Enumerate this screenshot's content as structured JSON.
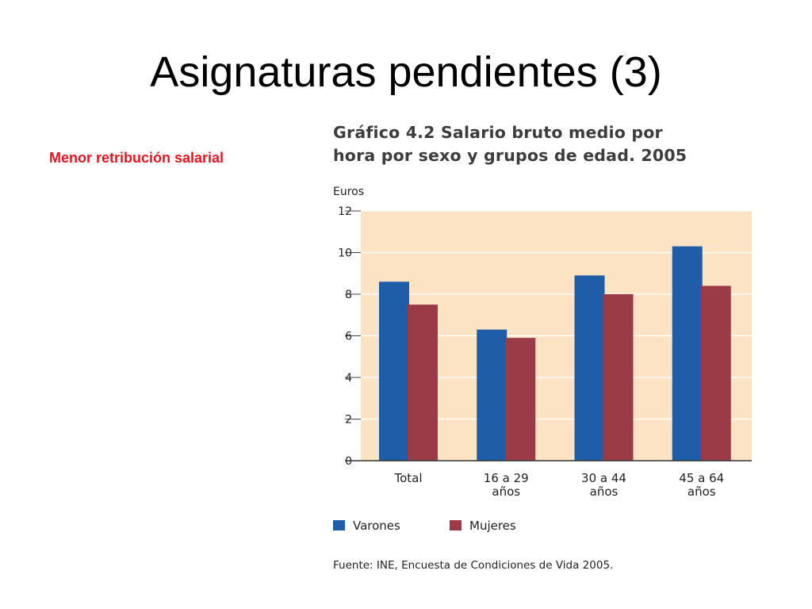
{
  "slide": {
    "title": "Asignaturas pendientes (3)",
    "note": "Menor retribución salarial"
  },
  "chart_data": {
    "type": "bar",
    "title": "Gráfico 4.2 Salario bruto medio por hora por sexo y grupos de edad. 2005",
    "title_lines": [
      "Gráfico 4.2 Salario bruto medio por",
      "hora por sexo y grupos de edad. 2005"
    ],
    "ylabel": "Euros",
    "xlabel": "",
    "ylim": [
      0,
      12
    ],
    "yticks": [
      0,
      2,
      4,
      6,
      8,
      10,
      12
    ],
    "grid": true,
    "legend_position": "bottom-left",
    "categories": [
      [
        "Total"
      ],
      [
        "16 a 29",
        "años"
      ],
      [
        "30 a 44",
        "años"
      ],
      [
        "45 a 64",
        "años"
      ]
    ],
    "series": [
      {
        "name": "Varones",
        "color": "#1f5da8",
        "values": [
          8.6,
          6.3,
          8.9,
          10.3
        ]
      },
      {
        "name": "Mujeres",
        "color": "#9c3b48",
        "values": [
          7.5,
          5.9,
          8.0,
          8.4
        ]
      }
    ],
    "plot_background": "#fbe3c4",
    "source": "Fuente: INE, Encuesta de Condiciones de Vida 2005."
  }
}
